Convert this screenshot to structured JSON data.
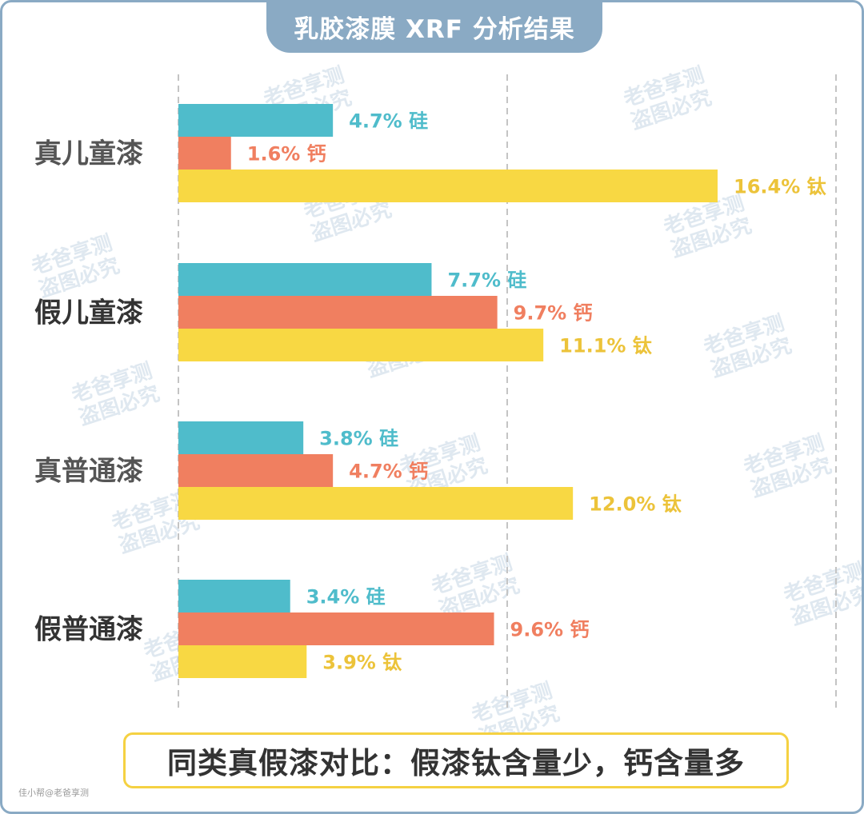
{
  "title": "乳胶漆膜 XRF 分析结果",
  "chart_data": {
    "type": "bar",
    "orientation": "horizontal",
    "title": "乳胶漆膜 XRF 分析结果",
    "unit": "%",
    "categories": [
      "真儿童漆",
      "假儿童漆",
      "真普通漆",
      "假普通漆"
    ],
    "series": [
      {
        "name": "硅",
        "color": "#4fbccb",
        "values": [
          4.7,
          7.7,
          3.8,
          3.4
        ],
        "labels": [
          "4.7% 硅",
          "7.7%  硅",
          "3.8%  硅",
          "3.4%  硅"
        ]
      },
      {
        "name": "钙",
        "color": "#f07f60",
        "values": [
          1.6,
          9.7,
          4.7,
          9.6
        ],
        "labels": [
          "1.6%  钙",
          "9.7%  钙",
          "4.7% 钙",
          "9.6% 钙"
        ]
      },
      {
        "name": "钛",
        "color": "#f8d843",
        "values": [
          16.4,
          11.1,
          12.0,
          3.9
        ],
        "labels": [
          "16.4% 钛",
          "11.1%  钛",
          "12.0%  钛",
          "3.9% 钛"
        ]
      }
    ],
    "xlim": [
      0,
      16.4
    ],
    "grid": "vertical-dashed"
  },
  "callout": "同类真假漆对比：假漆钛含量少，钙含量多",
  "credit": "佳小帮@老爸享测",
  "watermark": [
    "老爸享测",
    "盗图必究"
  ]
}
